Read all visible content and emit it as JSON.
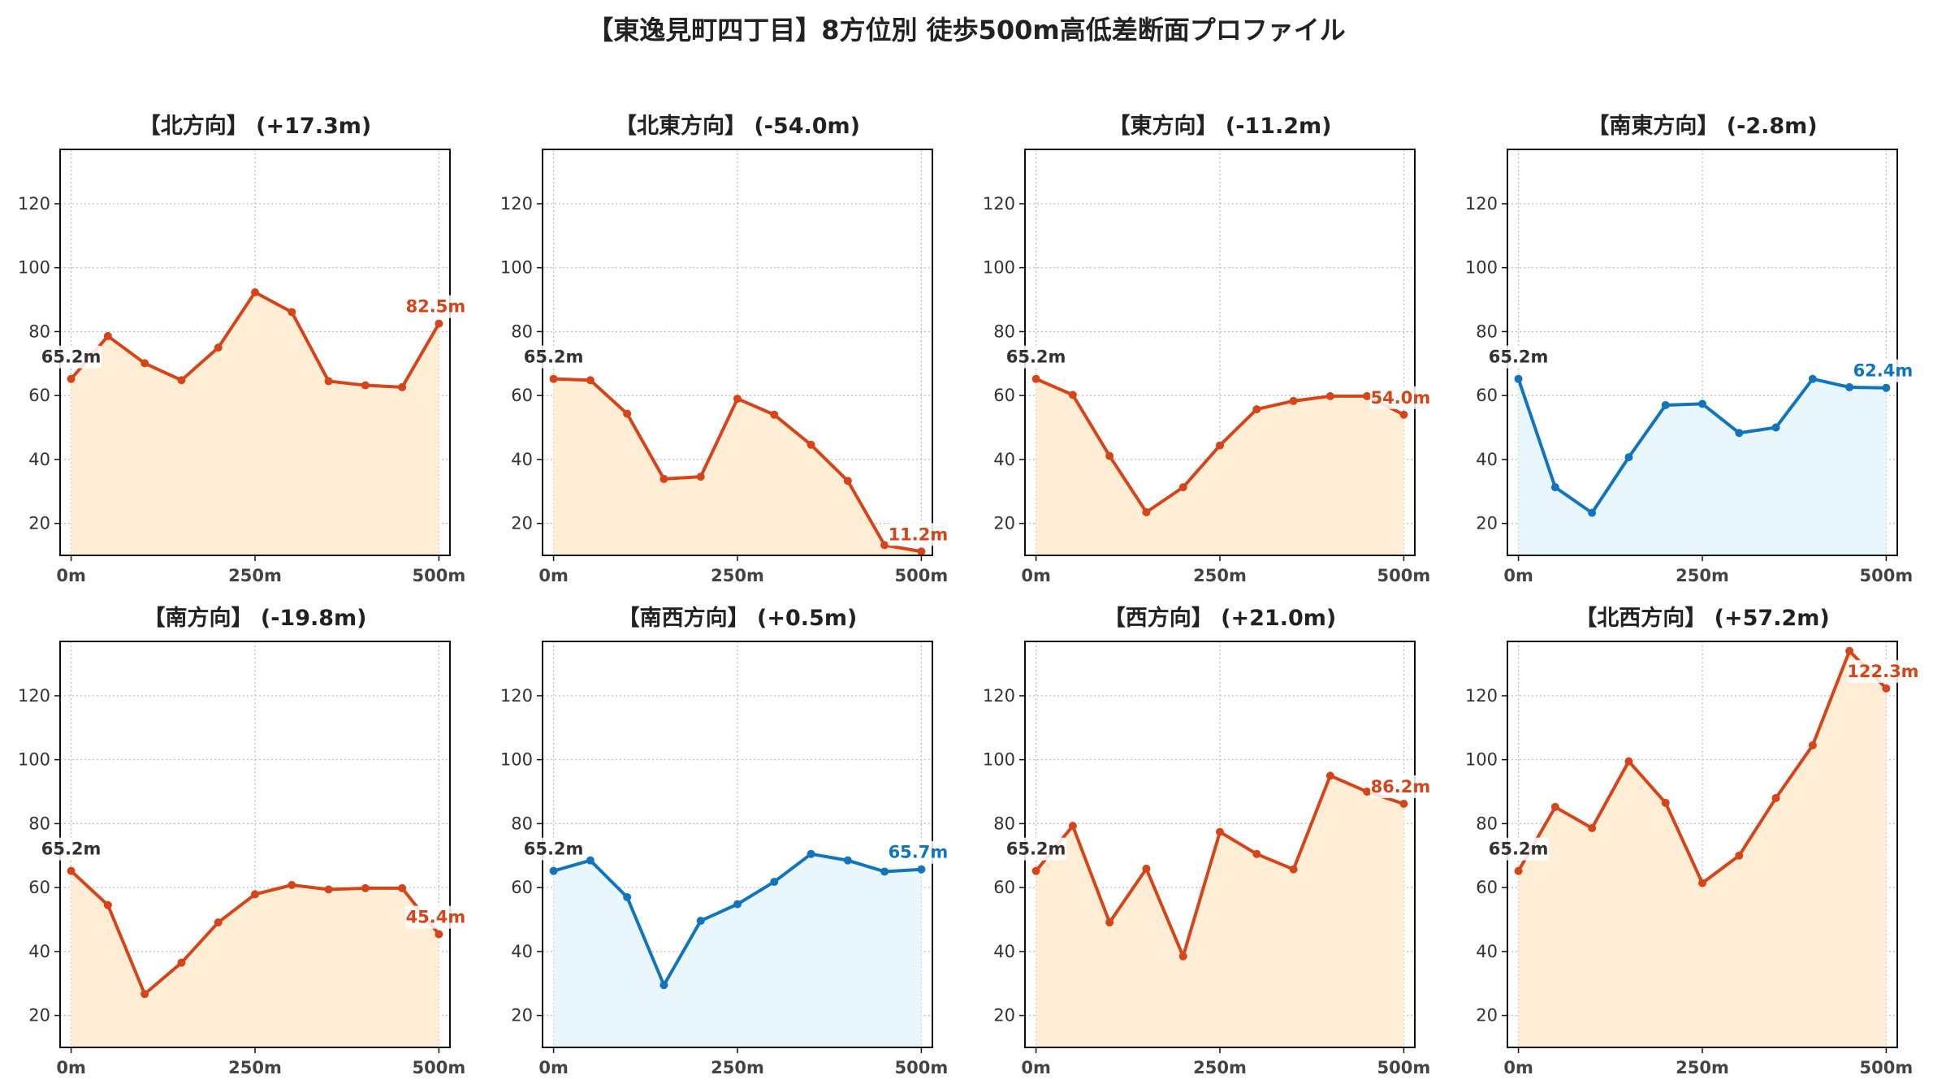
{
  "title": "【東逸見町四丁目】8方位別 徒歩500m高低差断面プロファイル",
  "colors": {
    "down": "#d6441a",
    "down_fill": "#ffeed5",
    "up": "#1075bd",
    "up_fill": "#e9f6fc",
    "grid": "#bbbbbb",
    "start_label": "#333333"
  },
  "chart_data": [
    {
      "type": "area",
      "title": "【北方向】 (+17.3m)",
      "color": "down",
      "x": [
        0,
        50,
        100,
        150,
        200,
        250,
        300,
        350,
        400,
        450,
        500
      ],
      "values": [
        65.2,
        78.6,
        70.1,
        64.8,
        75.0,
        92.3,
        86.1,
        64.5,
        63.2,
        62.6,
        82.5
      ],
      "start_label": "65.2m",
      "end_label": "82.5m",
      "xticks": [
        "0m",
        "250m",
        "500m"
      ],
      "yticks": [
        20,
        40,
        60,
        80,
        100,
        120
      ],
      "ylim": [
        10,
        137
      ],
      "grid": true
    },
    {
      "type": "area",
      "title": "【北東方向】 (-54.0m)",
      "color": "down",
      "x": [
        0,
        50,
        100,
        150,
        200,
        250,
        300,
        350,
        400,
        450,
        500
      ],
      "values": [
        65.2,
        64.8,
        54.3,
        33.9,
        34.6,
        59.0,
        54.0,
        44.6,
        33.3,
        13.2,
        11.2
      ],
      "start_label": "65.2m",
      "end_label": "11.2m",
      "xticks": [
        "0m",
        "250m",
        "500m"
      ],
      "yticks": [
        20,
        40,
        60,
        80,
        100,
        120
      ],
      "ylim": [
        10,
        137
      ],
      "grid": true
    },
    {
      "type": "area",
      "title": "【東方向】 (-11.2m)",
      "color": "down",
      "x": [
        0,
        50,
        100,
        150,
        200,
        250,
        300,
        350,
        400,
        450,
        500
      ],
      "values": [
        65.2,
        60.2,
        41.1,
        23.5,
        31.3,
        44.4,
        55.7,
        58.3,
        59.8,
        59.8,
        54.0
      ],
      "start_label": "65.2m",
      "end_label": "54.0m",
      "xticks": [
        "0m",
        "250m",
        "500m"
      ],
      "yticks": [
        20,
        40,
        60,
        80,
        100,
        120
      ],
      "ylim": [
        10,
        137
      ],
      "grid": true
    },
    {
      "type": "area",
      "title": "【南東方向】 (-2.8m)",
      "color": "up",
      "x": [
        0,
        50,
        100,
        150,
        200,
        250,
        300,
        350,
        400,
        450,
        500
      ],
      "values": [
        65.2,
        31.3,
        23.3,
        40.7,
        57.0,
        57.4,
        48.3,
        50.0,
        65.2,
        62.6,
        62.4
      ],
      "start_label": "65.2m",
      "end_label": "62.4m",
      "xticks": [
        "0m",
        "250m",
        "500m"
      ],
      "yticks": [
        20,
        40,
        60,
        80,
        100,
        120
      ],
      "ylim": [
        10,
        137
      ],
      "grid": true
    },
    {
      "type": "area",
      "title": "【南方向】 (-19.8m)",
      "color": "down",
      "x": [
        0,
        50,
        100,
        150,
        200,
        250,
        300,
        350,
        400,
        450,
        500
      ],
      "values": [
        65.2,
        54.5,
        26.7,
        36.5,
        49.1,
        57.9,
        60.8,
        59.4,
        59.8,
        59.8,
        45.4
      ],
      "start_label": "65.2m",
      "end_label": "45.4m",
      "xticks": [
        "0m",
        "250m",
        "500m"
      ],
      "yticks": [
        20,
        40,
        60,
        80,
        100,
        120
      ],
      "ylim": [
        10,
        137
      ],
      "grid": true
    },
    {
      "type": "area",
      "title": "【南西方向】 (+0.5m)",
      "color": "up",
      "x": [
        0,
        50,
        100,
        150,
        200,
        250,
        300,
        350,
        400,
        450,
        500
      ],
      "values": [
        65.2,
        68.5,
        57.0,
        29.5,
        49.6,
        54.8,
        61.8,
        70.5,
        68.5,
        65.0,
        65.7
      ],
      "start_label": "65.2m",
      "end_label": "65.7m",
      "xticks": [
        "0m",
        "250m",
        "500m"
      ],
      "yticks": [
        20,
        40,
        60,
        80,
        100,
        120
      ],
      "ylim": [
        10,
        137
      ],
      "grid": true
    },
    {
      "type": "area",
      "title": "【西方向】 (+21.0m)",
      "color": "down",
      "x": [
        0,
        50,
        100,
        150,
        200,
        250,
        300,
        350,
        400,
        450,
        500
      ],
      "values": [
        65.2,
        79.3,
        49.1,
        65.9,
        38.5,
        77.4,
        70.5,
        65.7,
        95.0,
        90.0,
        86.2
      ],
      "start_label": "65.2m",
      "end_label": "86.2m",
      "xticks": [
        "0m",
        "250m",
        "500m"
      ],
      "yticks": [
        20,
        40,
        60,
        80,
        100,
        120
      ],
      "ylim": [
        10,
        137
      ],
      "grid": true
    },
    {
      "type": "area",
      "title": "【北西方向】 (+57.2m)",
      "color": "down",
      "x": [
        0,
        50,
        100,
        150,
        200,
        250,
        300,
        350,
        400,
        450,
        500
      ],
      "values": [
        65.2,
        85.2,
        78.6,
        99.5,
        86.5,
        61.4,
        70.0,
        88.0,
        104.5,
        134.0,
        122.3
      ],
      "start_label": "65.2m",
      "end_label": "122.3m",
      "xticks": [
        "0m",
        "250m",
        "500m"
      ],
      "yticks": [
        20,
        40,
        60,
        80,
        100,
        120
      ],
      "ylim": [
        10,
        137
      ],
      "grid": true
    }
  ]
}
